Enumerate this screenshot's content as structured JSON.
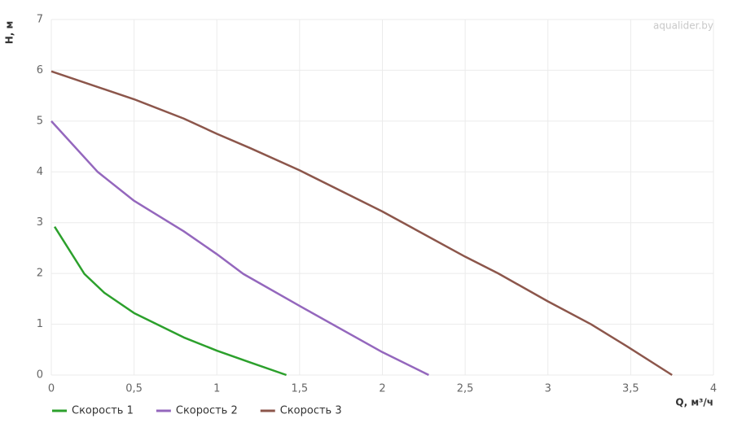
{
  "chart_data": {
    "type": "line",
    "watermark": "aqualider.by",
    "x_label": "Q, м³/ч",
    "y_label": "H, м",
    "xlim": [
      0,
      4
    ],
    "xticks": [
      0,
      {
        "value": 0.5,
        "label": "0,5"
      },
      1,
      {
        "value": 1.5,
        "label": "1,5"
      },
      2,
      {
        "value": 2.5,
        "label": "2,5"
      },
      3,
      {
        "value": 3.5,
        "label": "3,5"
      },
      4
    ],
    "ylim": [
      0,
      7
    ],
    "yticks": [
      0,
      1,
      2,
      3,
      4,
      5,
      6,
      7
    ],
    "grid": true,
    "legend": "bottom-left",
    "series": [
      {
        "name": "Скорость 1",
        "color": "#2ca02c",
        "x": [
          0.02,
          0.2,
          0.32,
          0.5,
          0.8,
          1.0,
          1.2,
          1.42
        ],
        "values": [
          2.92,
          1.99,
          1.62,
          1.22,
          0.74,
          0.48,
          0.25,
          0
        ]
      },
      {
        "name": "Скорость 2",
        "color": "#9467bd",
        "x": [
          0,
          0.28,
          0.5,
          0.8,
          1.0,
          1.16,
          1.5,
          2.0,
          2.28
        ],
        "values": [
          5,
          4.0,
          3.43,
          2.83,
          2.38,
          1.99,
          1.36,
          0.45,
          0
        ]
      },
      {
        "name": "Скорость 3",
        "color": "#8c564b",
        "x": [
          0,
          0.5,
          0.8,
          1.0,
          1.2,
          1.5,
          2.0,
          2.5,
          2.7,
          3.0,
          3.26,
          3.48,
          3.75
        ],
        "values": [
          5.98,
          5.43,
          5.05,
          4.75,
          4.47,
          4.03,
          3.22,
          2.33,
          2.0,
          1.45,
          1.0,
          0.56,
          0
        ]
      }
    ]
  }
}
